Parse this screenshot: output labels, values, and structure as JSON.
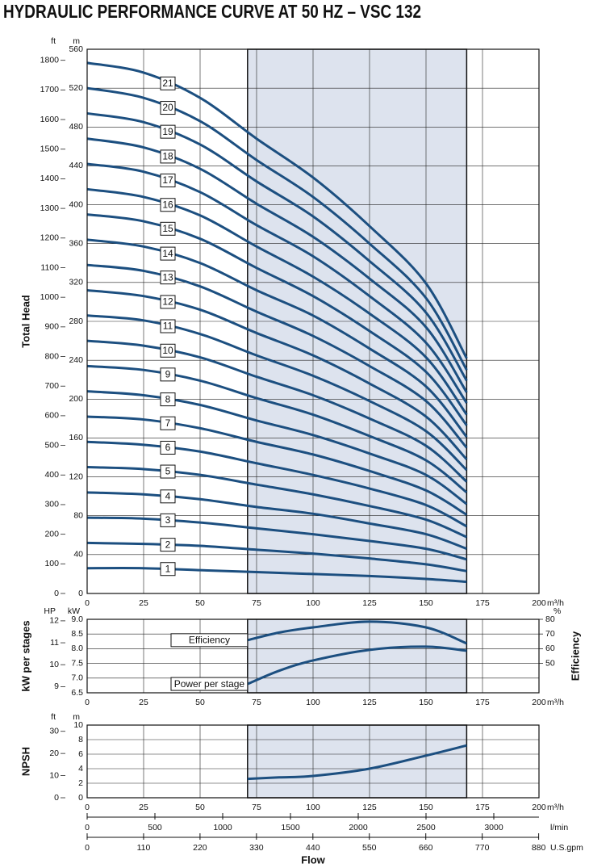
{
  "title": "HYDRAULIC PERFORMANCE CURVE AT 50 HZ – VSC 132",
  "chart_data": [
    {
      "type": "line",
      "ylabel": "Total Head",
      "y_unit": "m",
      "y2_unit": "ft",
      "xlim": [
        0,
        200
      ],
      "xticks": [
        0,
        25,
        50,
        75,
        100,
        125,
        150,
        175,
        200
      ],
      "x_unit": "m³/h",
      "ylim": [
        0,
        560
      ],
      "yticks": [
        0,
        40,
        80,
        120,
        160,
        200,
        240,
        280,
        320,
        360,
        400,
        440,
        480,
        520,
        560
      ],
      "y2lim": [
        0,
        1837.3
      ],
      "y2ticks": [
        0,
        100,
        200,
        300,
        400,
        500,
        600,
        700,
        800,
        900,
        1000,
        1100,
        1200,
        1300,
        1400,
        1500,
        1600,
        1700,
        1800
      ],
      "grid": true,
      "shaded_range": [
        71,
        168
      ],
      "shade_color": "#dde3ee",
      "x": [
        0,
        25,
        50,
        75,
        100,
        125,
        150,
        168
      ],
      "series": [
        {
          "name": "1",
          "color": "#1c4f80",
          "values": [
            26,
            26,
            24,
            22,
            20,
            18,
            15,
            12
          ]
        },
        {
          "name": "2",
          "color": "#1c4f80",
          "values": [
            52,
            51,
            49,
            45,
            41,
            36,
            30,
            23
          ]
        },
        {
          "name": "3",
          "color": "#1c4f80",
          "values": [
            78,
            77,
            73,
            67,
            61,
            54,
            46,
            35
          ]
        },
        {
          "name": "4",
          "color": "#1c4f80",
          "values": [
            104,
            102,
            97,
            89,
            82,
            72,
            61,
            46
          ]
        },
        {
          "name": "5",
          "color": "#1c4f80",
          "values": [
            130,
            128,
            122,
            112,
            102,
            90,
            76,
            58
          ]
        },
        {
          "name": "6",
          "color": "#1c4f80",
          "values": [
            156,
            153,
            146,
            134,
            122,
            108,
            91,
            69
          ]
        },
        {
          "name": "7",
          "color": "#1c4f80",
          "values": [
            182,
            179,
            170,
            156,
            143,
            126,
            106,
            81
          ]
        },
        {
          "name": "8",
          "color": "#1c4f80",
          "values": [
            208,
            204,
            194,
            178,
            163,
            144,
            122,
            92
          ]
        },
        {
          "name": "9",
          "color": "#1c4f80",
          "values": [
            234,
            230,
            219,
            201,
            184,
            162,
            137,
            104
          ]
        },
        {
          "name": "10",
          "color": "#1c4f80",
          "values": [
            260,
            255,
            243,
            223,
            204,
            180,
            152,
            115
          ]
        },
        {
          "name": "11",
          "color": "#1c4f80",
          "values": [
            286,
            281,
            267,
            245,
            224,
            198,
            167,
            127
          ]
        },
        {
          "name": "12",
          "color": "#1c4f80",
          "values": [
            312,
            306,
            292,
            268,
            245,
            216,
            182,
            138
          ]
        },
        {
          "name": "13",
          "color": "#1c4f80",
          "values": [
            338,
            332,
            316,
            290,
            265,
            234,
            198,
            150
          ]
        },
        {
          "name": "14",
          "color": "#1c4f80",
          "values": [
            364,
            357,
            340,
            312,
            286,
            252,
            213,
            161
          ]
        },
        {
          "name": "15",
          "color": "#1c4f80",
          "values": [
            390,
            383,
            365,
            335,
            306,
            270,
            228,
            173
          ]
        },
        {
          "name": "16",
          "color": "#1c4f80",
          "values": [
            416,
            408,
            389,
            357,
            326,
            288,
            243,
            184
          ]
        },
        {
          "name": "17",
          "color": "#1c4f80",
          "values": [
            442,
            434,
            413,
            379,
            347,
            306,
            258,
            196
          ]
        },
        {
          "name": "18",
          "color": "#1c4f80",
          "values": [
            468,
            459,
            437,
            401,
            367,
            324,
            274,
            207
          ]
        },
        {
          "name": "19",
          "color": "#1c4f80",
          "values": [
            494,
            485,
            462,
            424,
            388,
            342,
            289,
            219
          ]
        },
        {
          "name": "20",
          "color": "#1c4f80",
          "values": [
            520,
            510,
            486,
            446,
            408,
            360,
            304,
            230
          ]
        },
        {
          "name": "21",
          "color": "#1c4f80",
          "values": [
            546,
            536,
            510,
            468,
            428,
            378,
            319,
            242
          ]
        }
      ]
    },
    {
      "type": "line",
      "ylabel": "kW per stages",
      "y2label": "Efficiency",
      "y_unit": "kW",
      "y2_unit": "%",
      "y3_unit": "HP",
      "xlim": [
        0,
        200
      ],
      "xticks": [
        0,
        25,
        50,
        75,
        100,
        125,
        150,
        175,
        200
      ],
      "x_unit": "m³/h",
      "ylim": [
        6.5,
        9.0
      ],
      "yticks": [
        6.5,
        {
          "value": 7,
          "label": "7.0"
        },
        7.5,
        {
          "value": 8,
          "label": "8.0"
        },
        8.5,
        {
          "value": 9,
          "label": "9.0"
        }
      ],
      "y2lim": [
        30,
        80
      ],
      "y2ticks": [
        50,
        60,
        70,
        80
      ],
      "y3lim": [
        8.72,
        12.07
      ],
      "y3ticks": [
        9,
        10,
        11,
        12
      ],
      "grid": true,
      "shaded_range": [
        71,
        168
      ],
      "shade_color": "#dde3ee",
      "x": [
        71,
        85,
        100,
        125,
        150,
        168
      ],
      "series": [
        {
          "name": "Efficiency",
          "color": "#1c4f80",
          "axis": "y2",
          "values": [
            65.8,
            71,
            74.5,
            78.4,
            74.5,
            63.6
          ]
        },
        {
          "name": "Power per stage",
          "color": "#1c4f80",
          "values": [
            6.8,
            7.25,
            7.6,
            7.96,
            8.07,
            7.93
          ]
        }
      ]
    },
    {
      "type": "line",
      "ylabel": "NPSH",
      "y_unit": "m",
      "y2_unit": "ft",
      "xlim": [
        0,
        200
      ],
      "xticks": [
        0,
        25,
        50,
        75,
        100,
        125,
        150,
        175,
        200
      ],
      "x_unit": "m³/h",
      "ylim": [
        0,
        10
      ],
      "yticks": [
        0,
        2,
        4,
        6,
        8,
        10
      ],
      "y2lim": [
        0,
        32.81
      ],
      "y2ticks": [
        0,
        10,
        20,
        30
      ],
      "grid": true,
      "shaded_range": [
        71,
        168
      ],
      "shade_color": "#dde3ee",
      "x": [
        71,
        85,
        100,
        125,
        150,
        168
      ],
      "color": "#1c4f80",
      "values": [
        2.6,
        2.8,
        3.0,
        4.0,
        5.8,
        7.2
      ],
      "x2lim": [
        0,
        3333.3
      ],
      "x2ticks": [
        0,
        500,
        1000,
        1500,
        2000,
        2500,
        3000
      ],
      "x2_unit": "l/min",
      "x3lim": [
        0,
        880.6
      ],
      "x3ticks": [
        0,
        110,
        220,
        330,
        440,
        550,
        660,
        770,
        880
      ],
      "x3_unit": "U.S.gpm",
      "xlabel": "Flow"
    }
  ]
}
